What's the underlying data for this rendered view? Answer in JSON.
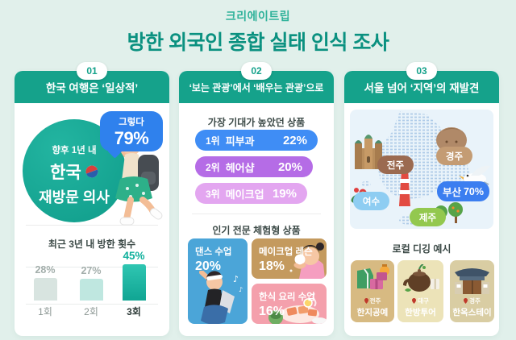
{
  "header": {
    "brand": "크리에이트립",
    "title": "방한 외국인 종합 실태 인식 조사"
  },
  "panel1": {
    "badge": "01",
    "title": "한국 여행은 ‘일상적’",
    "revisit": {
      "line1": "향후 1년 내",
      "line2": "한국",
      "line3": "재방문 의사",
      "bubble_label": "그렇다",
      "bubble_value": "79%"
    },
    "chart_title": "최근 3년 내 방한 횟수",
    "bars": [
      {
        "label": "1회",
        "value": "28%"
      },
      {
        "label": "2회",
        "value": "27%"
      },
      {
        "label": "3회",
        "value": "45%"
      }
    ]
  },
  "panel2": {
    "badge": "02",
    "title": "‘보는 관광’에서 ‘배우는 관광’으로",
    "section1_title": "가장 기대가 높았던 상품",
    "rankings": [
      {
        "rank": "1위",
        "label": "피부과",
        "value": "22%"
      },
      {
        "rank": "2위",
        "label": "헤어샵",
        "value": "20%"
      },
      {
        "rank": "3위",
        "label": "메이크업",
        "value": "19%"
      }
    ],
    "section2_title": "인기 전문 체험형 상품",
    "experiences": [
      {
        "label": "댄스 수업",
        "value": "20%"
      },
      {
        "label": "메이크업 레슨",
        "value": "18%"
      },
      {
        "label": "한식 요리 수업",
        "value": "16%"
      }
    ]
  },
  "panel3": {
    "badge": "03",
    "title": "서울 넘어 ‘지역’의 재발견",
    "map": {
      "jeonju": "전주",
      "gyeongju": "경주",
      "yeosu": "여수",
      "busan_name": "부산",
      "busan_value": "70%",
      "jeju": "제주"
    },
    "section_title": "로컬 디깅 예시",
    "local_cards": [
      {
        "location": "전주",
        "label": "한지공예"
      },
      {
        "location": "대구",
        "label": "한방투어"
      },
      {
        "location": "경주",
        "label": "한옥스테이"
      }
    ]
  },
  "colors": {
    "page_bg": "#e1f0eb",
    "teal_header": "#15a28b",
    "title_teal": "#0b9180",
    "accent_blue": "#2f81ed",
    "rank_blue": "#3f8df5",
    "rank_purple": "#b56ce6",
    "rank_pink": "#e3a6f0",
    "bar_highlight": "#10a593",
    "busan_blue": "#3b7ef0",
    "jeju_green": "#93c84f"
  },
  "chart_data": [
    {
      "type": "bar",
      "title": "최근 3년 내 방한 횟수",
      "categories": [
        "1회",
        "2회",
        "3회"
      ],
      "values": [
        28,
        27,
        45
      ],
      "unit": "%",
      "highlight_index": 2,
      "ylim": [
        0,
        50
      ]
    },
    {
      "type": "bar",
      "title": "가장 기대가 높았던 상품",
      "categories": [
        "피부과",
        "헤어샵",
        "메이크업"
      ],
      "ranks": [
        "1위",
        "2위",
        "3위"
      ],
      "values": [
        22,
        20,
        19
      ],
      "unit": "%"
    },
    {
      "type": "bar",
      "title": "인기 전문 체험형 상품",
      "categories": [
        "댄스 수업",
        "메이크업 레슨",
        "한식 요리 수업"
      ],
      "values": [
        20,
        18,
        16
      ],
      "unit": "%"
    },
    {
      "type": "stat",
      "title": "향후 1년 내 한국 재방문 의사",
      "label": "그렇다",
      "value": 79,
      "unit": "%"
    },
    {
      "type": "stat",
      "title": "서울 넘어 지역의 재발견 (부산)",
      "label": "부산",
      "value": 70,
      "unit": "%"
    }
  ]
}
